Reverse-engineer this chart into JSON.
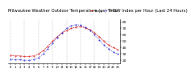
{
  "title": "Milwaukee Weather Outdoor Temperature (vs) THSW Index per Hour (Last 24 Hours)",
  "hours": [
    0,
    1,
    2,
    3,
    4,
    5,
    6,
    7,
    8,
    9,
    10,
    11,
    12,
    13,
    14,
    15,
    16,
    17,
    18,
    19,
    20,
    21,
    22,
    23
  ],
  "temp": [
    28,
    27,
    27,
    26,
    26,
    27,
    30,
    35,
    42,
    50,
    57,
    63,
    67,
    70,
    72,
    73,
    71,
    68,
    63,
    57,
    50,
    44,
    40,
    37
  ],
  "thsw": [
    22,
    21,
    21,
    20,
    20,
    21,
    24,
    30,
    38,
    47,
    56,
    63,
    70,
    74,
    76,
    75,
    72,
    67,
    60,
    52,
    44,
    38,
    33,
    30
  ],
  "temp_color": "#dd2222",
  "thsw_color": "#2222dd",
  "bg_color": "#ffffff",
  "grid_color": "#aaaaaa",
  "ylim": [
    15,
    85
  ],
  "yticks": [
    20,
    30,
    40,
    50,
    60,
    70,
    80
  ],
  "title_fontsize": 3.8,
  "tick_fontsize": 3.2,
  "legend_fontsize": 2.8
}
